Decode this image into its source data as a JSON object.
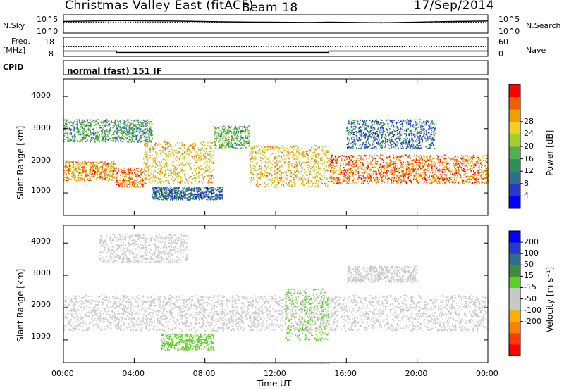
{
  "header": {
    "title": "Christmas Valley East (fitACF)",
    "beam": "Beam 18",
    "date": "17/Sep/2014"
  },
  "nsky_panel": {
    "left_label": "N.Sky",
    "left_ticks": [
      "10^5",
      "10^0"
    ],
    "right_ticks": [
      "10^5",
      "10^0"
    ],
    "right_label": "N.Search"
  },
  "freq_panel": {
    "left_label_1": "Freq.",
    "left_label_2": "[MHz]",
    "left_ticks": [
      "18",
      "8"
    ],
    "right_ticks": [
      "60",
      "0"
    ],
    "right_label": "Nave"
  },
  "cpid_panel": {
    "label": "CPID",
    "mode": "normal (fast) 151 IF"
  },
  "x_axis": {
    "label": "Time UT",
    "ticks": [
      "00:00",
      "04:00",
      "08:00",
      "12:00",
      "16:00",
      "20:00",
      "00:00"
    ]
  },
  "colors": {
    "power": [
      "#0000ff",
      "#2838c8",
      "#2e6e8e",
      "#2f8f5a",
      "#50b050",
      "#a4cf2a",
      "#f0d020",
      "#f0a000",
      "#f06000",
      "#ff0000"
    ],
    "velocity": [
      "#ff0000",
      "#ff3c00",
      "#ff7f00",
      "#f5b000",
      "#c8c8c8",
      "#c8c8c8",
      "#5ed02a",
      "#3c8c3c",
      "#2e6e8e",
      "#2838c8",
      "#0000ff"
    ]
  },
  "chart_data": [
    {
      "type": "heatmap",
      "panel": "power",
      "ylabel": "Slant Range [km]",
      "yticks": [
        "1000",
        "2000",
        "3000",
        "4000"
      ],
      "ylim": [
        300,
        4550
      ],
      "x": "Time UT 00:00-24:00",
      "colorbar": {
        "label": "Power [dB]",
        "ticks": [
          "4",
          "8",
          "12",
          "16",
          "20",
          "24",
          "28"
        ],
        "range": [
          0,
          32
        ]
      },
      "scatter_bands": [
        {
          "t": [
            0,
            2.9
          ],
          "range_km": [
            1400,
            2000
          ],
          "power_db": 24
        },
        {
          "t": [
            2.9,
            4.5
          ],
          "range_km": [
            1200,
            1800
          ],
          "power_db": 26
        },
        {
          "t": [
            4.5,
            8.5
          ],
          "range_km": [
            1300,
            2600
          ],
          "power_db": 22
        },
        {
          "t": [
            8.5,
            10.5
          ],
          "range_km": [
            2400,
            3100
          ],
          "power_db": 14
        },
        {
          "t": [
            10.5,
            15
          ],
          "range_km": [
            1200,
            2500
          ],
          "power_db": 22
        },
        {
          "t": [
            15,
            24
          ],
          "range_km": [
            1300,
            2200
          ],
          "power_db": 26
        },
        {
          "t": [
            5,
            9
          ],
          "range_km": [
            800,
            1200
          ],
          "power_db": 8
        },
        {
          "t": [
            0,
            5
          ],
          "range_km": [
            2600,
            3300
          ],
          "power_db": 12
        },
        {
          "t": [
            16,
            21
          ],
          "range_km": [
            2400,
            3300
          ],
          "power_db": 8
        }
      ]
    },
    {
      "type": "heatmap",
      "panel": "velocity",
      "ylabel": "Slant Range [km]",
      "yticks": [
        "1000",
        "2000",
        "3000",
        "4000"
      ],
      "ylim": [
        300,
        4550
      ],
      "x": "Time UT 00:00-24:00",
      "colorbar": {
        "label": "Velocity [m s⁻¹]",
        "ticks": [
          "200",
          "100",
          "50",
          "15",
          "-15",
          "-50",
          "-100",
          "-200"
        ],
        "range": [
          -250,
          250
        ]
      },
      "scatter_bands": [
        {
          "t": [
            0,
            24
          ],
          "range_km": [
            1300,
            2400
          ],
          "velocity_ms": 0
        },
        {
          "t": [
            5.5,
            8.5
          ],
          "range_km": [
            700,
            1200
          ],
          "velocity_ms": 40
        },
        {
          "t": [
            12.5,
            15
          ],
          "range_km": [
            1000,
            2600
          ],
          "velocity_ms": 45
        },
        {
          "t": [
            2,
            7
          ],
          "range_km": [
            3400,
            4300
          ],
          "velocity_ms": -40
        },
        {
          "t": [
            16,
            20
          ],
          "range_km": [
            2800,
            3300
          ],
          "velocity_ms": -20
        },
        {
          "t": [
            8,
            15
          ],
          "range_km": [
            0,
            300
          ],
          "velocity_ms": -60
        }
      ]
    },
    {
      "type": "line",
      "panel": "noise",
      "series": [
        {
          "name": "N.Sky",
          "x": [
            0,
            3,
            6,
            9,
            11,
            14,
            15,
            18,
            21,
            24
          ],
          "values": [
            3.2,
            3.4,
            3.3,
            3.1,
            3.0,
            2.9,
            3.0,
            2.8,
            3.1,
            3.3
          ]
        },
        {
          "name": "N.Search",
          "x": [
            0,
            6,
            12,
            18,
            24
          ],
          "values": [
            3.0,
            3.0,
            2.9,
            2.9,
            3.0
          ]
        }
      ]
    },
    {
      "type": "line",
      "panel": "frequency",
      "series": [
        {
          "name": "Freq.",
          "x": [
            0,
            3,
            3,
            15,
            15,
            24
          ],
          "values": [
            11.1,
            11.1,
            10.3,
            10.3,
            11.1,
            11.1
          ]
        },
        {
          "name": "Nave",
          "x": [
            0,
            24
          ],
          "values": [
            30,
            30
          ]
        }
      ]
    }
  ]
}
